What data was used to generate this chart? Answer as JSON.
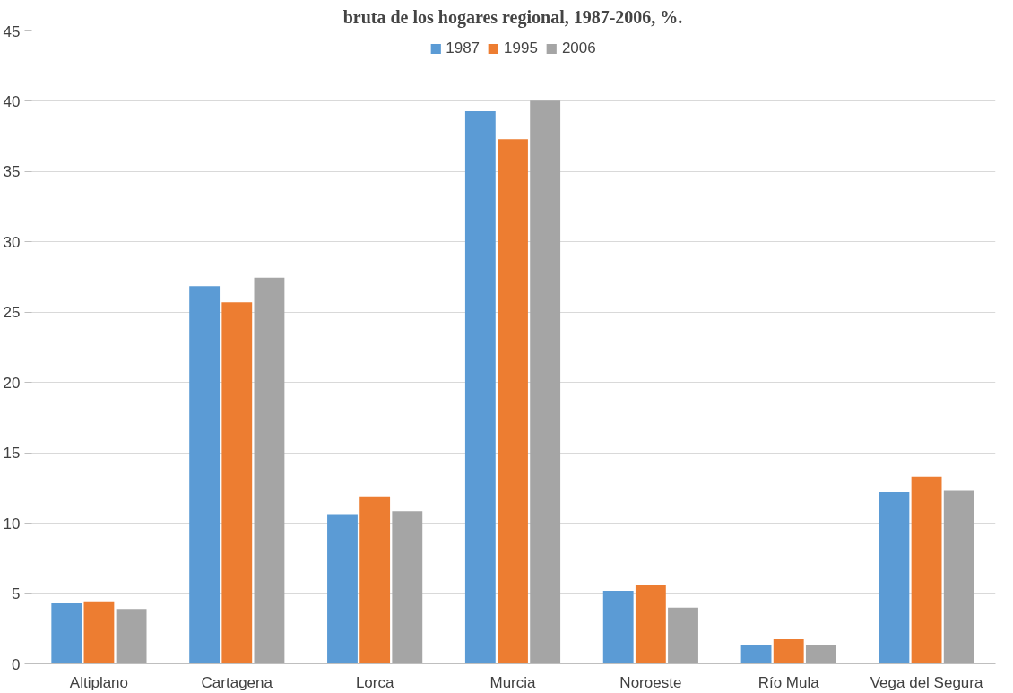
{
  "chart_data": {
    "type": "bar",
    "title": "bruta de los hogares regional, 1987-2006, %.",
    "categories": [
      "Altiplano",
      "Cartagena",
      "Lorca",
      "Murcia",
      "Noroeste",
      "Río Mula",
      "Vega del Segura"
    ],
    "series": [
      {
        "name": "1987",
        "color": "#5b9bd5",
        "values": [
          4.3,
          26.85,
          10.65,
          39.3,
          5.2,
          1.3,
          12.2
        ]
      },
      {
        "name": "1995",
        "color": "#ed7d31",
        "values": [
          4.45,
          25.7,
          11.9,
          37.3,
          5.6,
          1.75,
          13.3
        ]
      },
      {
        "name": "2006",
        "color": "#a5a5a5",
        "values": [
          3.9,
          27.45,
          10.85,
          40.05,
          4.0,
          1.37,
          12.3
        ]
      }
    ],
    "ylim": [
      0,
      45
    ],
    "yticks": [
      0,
      5,
      10,
      15,
      20,
      25,
      30,
      35,
      40,
      45
    ],
    "grid": "y",
    "legend": "top"
  }
}
